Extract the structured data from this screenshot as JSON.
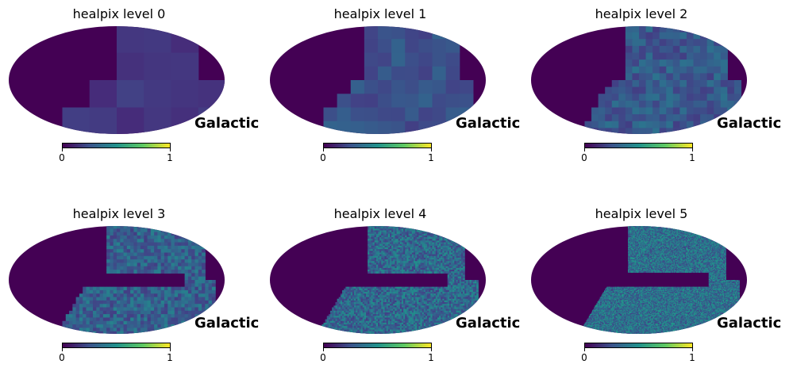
{
  "chart_data": [
    {
      "type": "heatmap",
      "title": "healpix level 0",
      "projection": "mollweide",
      "coord_label": "Galactic",
      "colorbar": {
        "min": 0,
        "max": 1,
        "ticks": [
          "0",
          "1"
        ]
      },
      "colormap": "viridis",
      "level": 0
    },
    {
      "type": "heatmap",
      "title": "healpix level 1",
      "projection": "mollweide",
      "coord_label": "Galactic",
      "colorbar": {
        "min": 0,
        "max": 1,
        "ticks": [
          "0",
          "1"
        ]
      },
      "colormap": "viridis",
      "level": 1
    },
    {
      "type": "heatmap",
      "title": "healpix level 2",
      "projection": "mollweide",
      "coord_label": "Galactic",
      "colorbar": {
        "min": 0,
        "max": 1,
        "ticks": [
          "0",
          "1"
        ]
      },
      "colormap": "viridis",
      "level": 2
    },
    {
      "type": "heatmap",
      "title": "healpix level 3",
      "projection": "mollweide",
      "coord_label": "Galactic",
      "colorbar": {
        "min": 0,
        "max": 1,
        "ticks": [
          "0",
          "1"
        ]
      },
      "colormap": "viridis",
      "level": 3
    },
    {
      "type": "heatmap",
      "title": "healpix level 4",
      "projection": "mollweide",
      "coord_label": "Galactic",
      "colorbar": {
        "min": 0,
        "max": 1,
        "ticks": [
          "0",
          "1"
        ]
      },
      "colormap": "viridis",
      "level": 4
    },
    {
      "type": "heatmap",
      "title": "healpix level 5",
      "projection": "mollweide",
      "coord_label": "Galactic",
      "colorbar": {
        "min": 0,
        "max": 1,
        "ticks": [
          "0",
          "1"
        ]
      },
      "colormap": "viridis",
      "level": 5
    }
  ],
  "colors": {
    "background": "#440154",
    "low": "#46327e",
    "mid": "#365c8d",
    "high": "#277f8e",
    "top": "#fde725"
  }
}
